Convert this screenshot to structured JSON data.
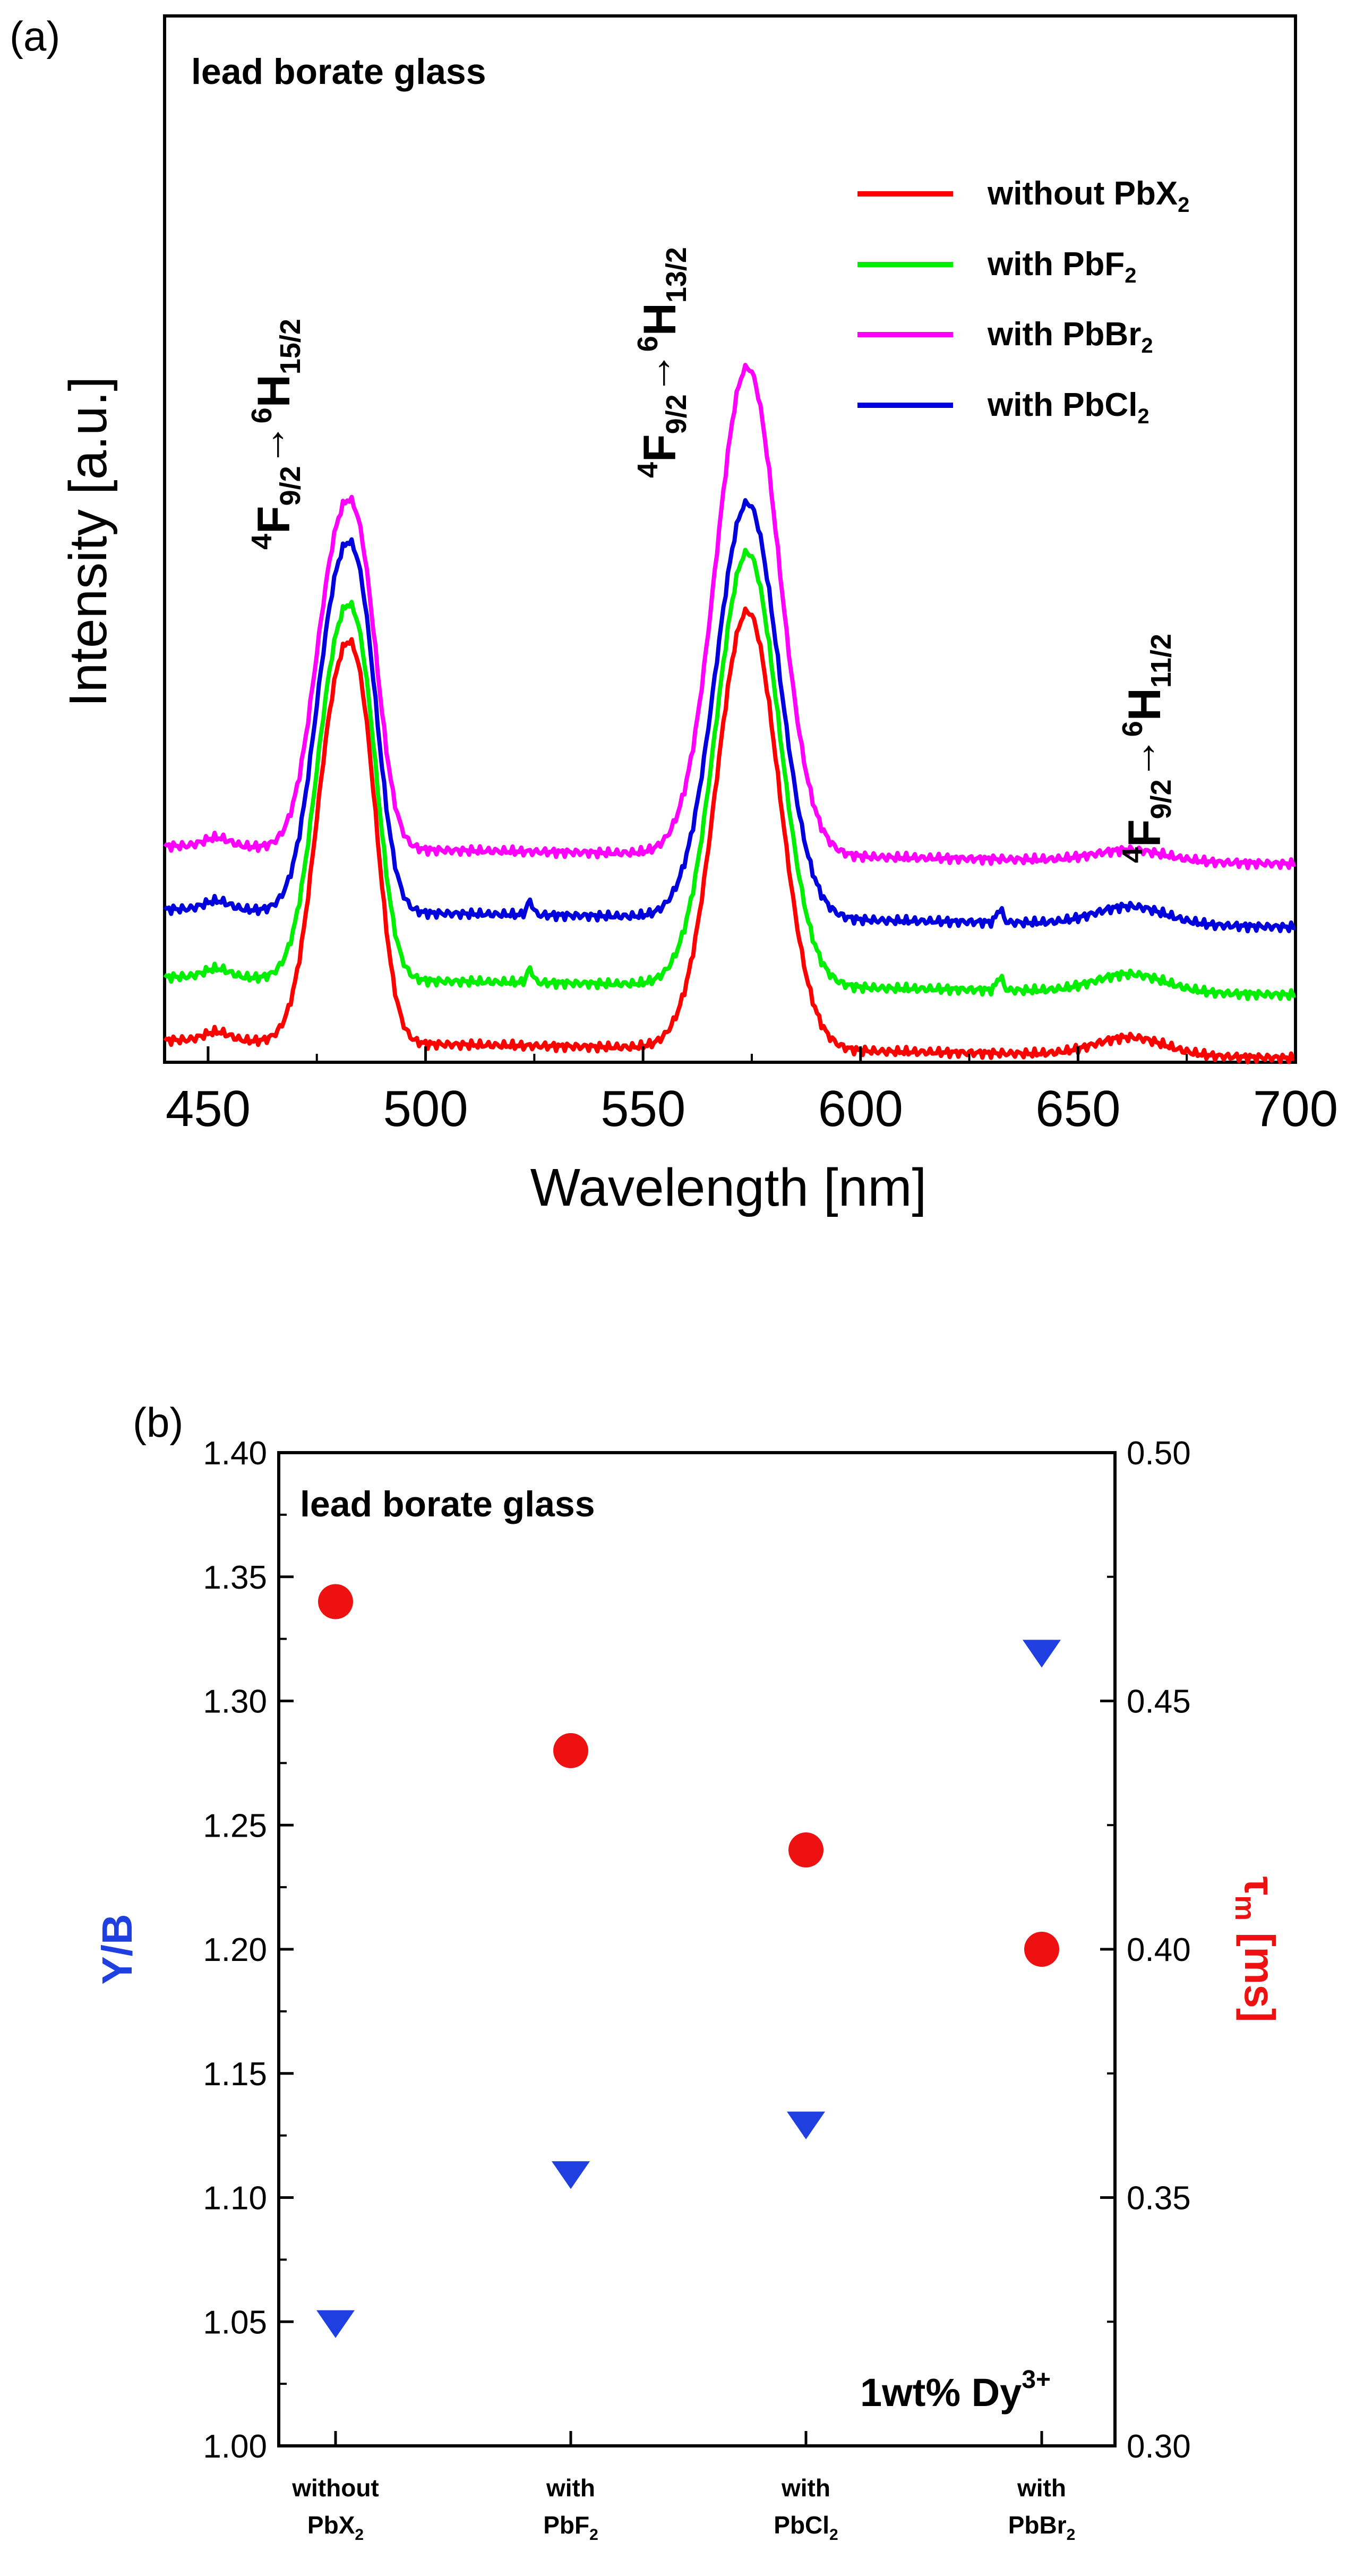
{
  "chart_data": [
    {
      "panel_label": "(a)",
      "type": "line",
      "title": "lead borate glass",
      "xlabel": "Wavelength [nm]",
      "ylabel": "Intensity [a.u.]",
      "xlim": [
        440,
        700
      ],
      "x_ticks": [
        "450",
        "500",
        "550",
        "600",
        "650",
        "700"
      ],
      "transitions": [
        {
          "from_num": "4",
          "from_L": "F",
          "from_sub": "9/2",
          "to_num": "6",
          "to_L": "H",
          "to_sub": "15/2",
          "wavelength": 480
        },
        {
          "from_num": "4",
          "from_L": "F",
          "from_sub": "9/2",
          "to_num": "6",
          "to_L": "H",
          "to_sub": "13/2",
          "wavelength": 574
        },
        {
          "from_num": "4",
          "from_L": "F",
          "from_sub": "9/2",
          "to_num": "6",
          "to_L": "H",
          "to_sub": "11/2",
          "wavelength": 662
        }
      ],
      "series": [
        {
          "name": "without PbX",
          "name_sub": "2",
          "color": "#ff0000",
          "baseline": 0.0,
          "peak480": 0.77,
          "peak574": 0.97,
          "peak662": 0.04,
          "spike_scale": 0
        },
        {
          "name": "with PbF",
          "name_sub": "2",
          "color": "#00ee00",
          "baseline": 0.14,
          "peak480": 0.86,
          "peak574": 1.1,
          "peak662": 0.04,
          "spike_scale": 1
        },
        {
          "name": "with PbBr",
          "name_sub": "2",
          "color": "#ff00ff",
          "baseline": 0.43,
          "peak480": 1.1,
          "peak574": 1.51,
          "peak662": 0.025,
          "spike_scale": 0
        },
        {
          "name": "with PbCl",
          "name_sub": "2",
          "color": "#0000dd",
          "baseline": 0.29,
          "peak480": 1.0,
          "peak574": 1.21,
          "peak662": 0.04,
          "spike_scale": 1
        }
      ]
    },
    {
      "panel_label": "(b)",
      "type": "scatter",
      "title": "lead borate glass",
      "annotation": "1wt% Dy",
      "annotation_sup": "3+",
      "categories": [
        {
          "line1": "without",
          "line2": "PbX",
          "sub": "2"
        },
        {
          "line1": "with",
          "line2": "PbF",
          "sub": "2"
        },
        {
          "line1": "with",
          "line2": "PbCl",
          "sub": "2"
        },
        {
          "line1": "with",
          "line2": "PbBr",
          "sub": "2"
        }
      ],
      "left_axis": {
        "label": "Y/B",
        "color": "#1f3fe0",
        "ylim": [
          1.0,
          1.4
        ],
        "ticks": [
          "1.00",
          "1.05",
          "1.10",
          "1.15",
          "1.20",
          "1.25",
          "1.30",
          "1.35",
          "1.40"
        ]
      },
      "right_axis": {
        "label_greek": "τ",
        "label_sub": "m",
        "label_unit": " [ms]",
        "color": "#ee1111",
        "ylim": [
          0.3,
          0.5
        ],
        "ticks": [
          "0.30",
          "0.35",
          "0.40",
          "0.45",
          "0.50"
        ]
      },
      "series": [
        {
          "name": "Y/B",
          "axis": "left",
          "marker": "triangle-down",
          "color": "#1f3fe0",
          "values": [
            1.05,
            1.11,
            1.13,
            1.32
          ]
        },
        {
          "name": "τm",
          "axis": "right",
          "marker": "circle",
          "color": "#ee1111",
          "values": [
            0.47,
            0.44,
            0.42,
            0.4
          ]
        }
      ]
    }
  ]
}
